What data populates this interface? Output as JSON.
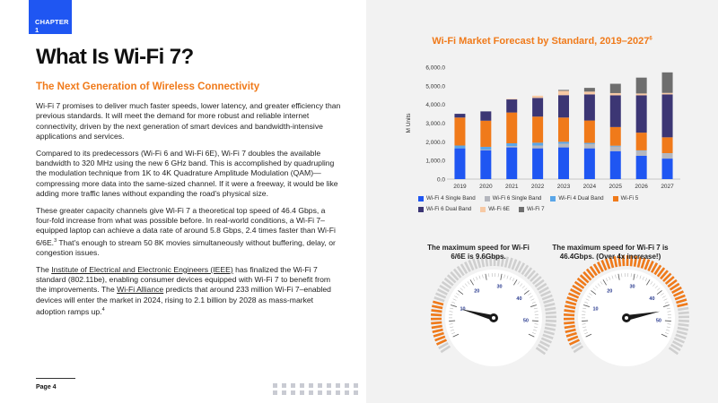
{
  "header": {
    "chapter": "CHAPTER 1"
  },
  "title": "What Is Wi-Fi 7?",
  "subtitle": "The Next Generation of Wireless Connectivity",
  "paragraphs": {
    "p1": "Wi-Fi 7 promises to deliver much faster speeds, lower latency, and greater efficiency than previous standards. It will meet the demand for more robust and reliable internet connectivity, driven by the next generation of smart devices and bandwidth-intensive applications and services.",
    "p2": "Compared to its predecessors (Wi-Fi 6 and Wi-Fi 6E), Wi-Fi 7 doubles the available bandwidth to 320 MHz using the new 6 GHz band. This is accomplished by quadrupling the modulation technique from 1K to 4K Quadrature Amplitude Modulation (QAM)—compressing more data into the same-sized channel. If it were a freeway, it would be like adding more traffic lanes without expanding the road's physical size.",
    "p3a": "These greater capacity channels give Wi-Fi 7 a theoretical top speed of 46.4 Gbps, a four-fold increase from what was possible before. In real-world conditions, a Wi-Fi 7–equipped laptop can achieve a data rate of around 5.8 Gbps, 2.4 times faster than Wi-Fi 6/6E.",
    "p3_ref": "3",
    "p3b": " That's enough to stream 50 8K movies simultaneously without buffering, delay, or congestion issues.",
    "p4a": "The ",
    "p4_link1": "Institute of Electrical and Electronic Engineers (IEEE)",
    "p4b": " has finalized the Wi-Fi 7 standard (802.11be), enabling consumer devices equipped with Wi-Fi 7 to benefit from the improvements. The ",
    "p4_link2": "Wi-Fi Alliance",
    "p4c": " predicts that around 233 million Wi-Fi 7–enabled devices will enter the market in 2024, rising to 2.1 billion by 2028 as mass-market adoption ramps up.",
    "p4_ref": "4"
  },
  "footer": {
    "page": "Page 4"
  },
  "chart_data": {
    "type": "bar",
    "stacked": true,
    "title": "Wi-Fi Market Forecast by Standard, 2019–2027",
    "title_ref": "6",
    "ylabel": "M Units",
    "ylim": [
      0,
      6000
    ],
    "yticks": [
      "0.0",
      "1,000.0",
      "2,000.0",
      "3,000.0",
      "4,000.0",
      "5,000.0",
      "6,000.0"
    ],
    "categories": [
      "2019",
      "2020",
      "2021",
      "2022",
      "2023",
      "2024",
      "2025",
      "2026",
      "2027"
    ],
    "series": [
      {
        "name": "Wi-Fi 4 Single Band",
        "color": "#1f56f2",
        "values": [
          1650,
          1550,
          1700,
          1650,
          1700,
          1650,
          1500,
          1250,
          1100
        ]
      },
      {
        "name": "Wi-Fi 6 Single Band",
        "color": "#b5b7be",
        "values": [
          0,
          30,
          70,
          150,
          200,
          230,
          250,
          270,
          280
        ]
      },
      {
        "name": "Wi-Fi 4 Dual Band",
        "color": "#5aa6e8",
        "values": [
          150,
          150,
          150,
          150,
          100,
          60,
          40,
          20,
          10
        ]
      },
      {
        "name": "Wi-Fi 5",
        "color": "#f07a1a",
        "values": [
          1500,
          1400,
          1650,
          1400,
          1300,
          1200,
          1000,
          950,
          850
        ]
      },
      {
        "name": "Wi-Fi 6 Dual Band",
        "color": "#3c3674",
        "values": [
          200,
          500,
          700,
          1000,
          1200,
          1400,
          1700,
          2000,
          2300
        ]
      },
      {
        "name": "Wi-Fi 6E",
        "color": "#f7c9a4",
        "values": [
          0,
          0,
          30,
          120,
          230,
          150,
          120,
          100,
          80
        ]
      },
      {
        "name": "Wi-Fi 7",
        "color": "#6e6e6e",
        "values": [
          0,
          0,
          0,
          0,
          50,
          200,
          500,
          850,
          1100
        ]
      }
    ],
    "legend_position": "bottom",
    "grid": false
  },
  "gauges": [
    {
      "caption": "The maximum speed for Wi-Fi 6/6E is 9.6Gbps.",
      "max_speed_gbps": 9.6,
      "accent_color": "#f07a1a",
      "ticks": [
        "10",
        "20",
        "30",
        "40",
        "50"
      ]
    },
    {
      "caption": "The maximum speed for Wi-Fi 7 is 46.4Gbps. (Over 4x increase!)",
      "max_speed_gbps": 46.4,
      "accent_color": "#f07a1a",
      "ticks": [
        "10",
        "20",
        "30",
        "40",
        "50"
      ]
    }
  ]
}
